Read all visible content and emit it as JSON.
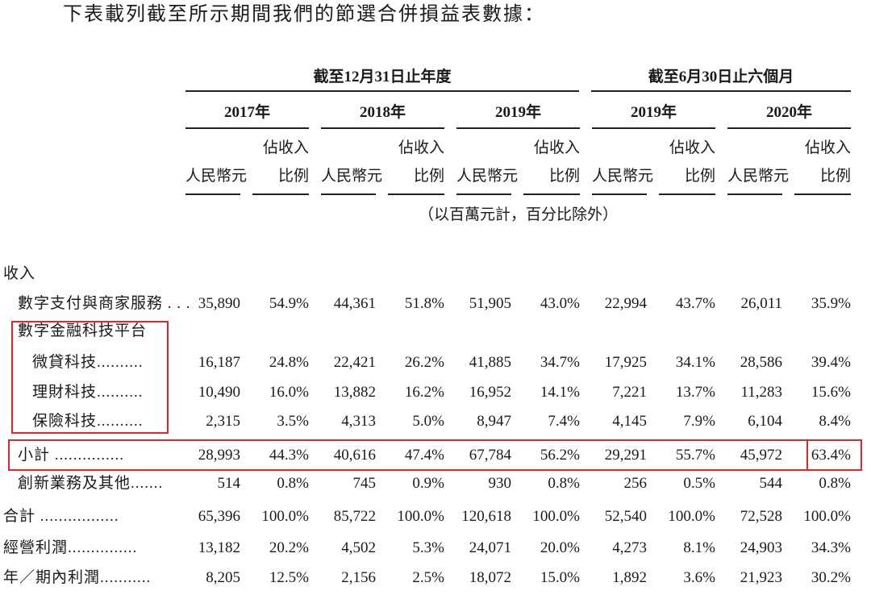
{
  "intro": "下表載列截至所示期間我們的節選合併損益表數據：",
  "header": {
    "group_1": "截至12月31日止年度",
    "group_2": "截至6月30日止六個月",
    "years": [
      "2017年",
      "2018年",
      "2019年",
      "2019年",
      "2020年"
    ],
    "col_amount": "人民幣元",
    "col_ratio_1": "佔收入",
    "col_ratio_2": "比例",
    "unit_note": "（以百萬元計，百分比除外）"
  },
  "rows": [
    {
      "label": "收入"
    },
    {
      "label": "數字支付與商家服務 . . .",
      "cells": [
        "35,890",
        "54.9%",
        "44,361",
        "51.8%",
        "51,905",
        "43.0%",
        "22,994",
        "43.7%",
        "26,011",
        "35.9%"
      ]
    },
    {
      "label": "數字金融科技平台"
    },
    {
      "label": "微貸科技..........",
      "cells": [
        "16,187",
        "24.8%",
        "22,421",
        "26.2%",
        "41,885",
        "34.7%",
        "17,925",
        "34.1%",
        "28,586",
        "39.4%"
      ]
    },
    {
      "label": "理財科技..........",
      "cells": [
        "10,490",
        "16.0%",
        "13,882",
        "16.2%",
        "16,952",
        "14.1%",
        "7,221",
        "13.7%",
        "11,283",
        "15.6%"
      ]
    },
    {
      "label": "保險科技..........",
      "cells": [
        "2,315",
        "3.5%",
        "4,313",
        "5.0%",
        "8,947",
        "7.4%",
        "4,145",
        "7.9%",
        "6,104",
        "8.4%"
      ]
    },
    {
      "label": "小計 ...............",
      "cells": [
        "28,993",
        "44.3%",
        "40,616",
        "47.4%",
        "67,784",
        "56.2%",
        "29,291",
        "55.7%",
        "45,972",
        "63.4%"
      ]
    },
    {
      "label": "創新業務及其他.......",
      "cells": [
        "514",
        "0.8%",
        "745",
        "0.9%",
        "930",
        "0.8%",
        "256",
        "0.5%",
        "544",
        "0.8%"
      ]
    },
    {
      "label": "合計 .................",
      "cells": [
        "65,396",
        "100.0%",
        "85,722",
        "100.0%",
        "120,618",
        "100.0%",
        "52,540",
        "100.0%",
        "72,528",
        "100.0%"
      ]
    },
    {
      "label": "經營利潤...............",
      "cells": [
        "13,182",
        "20.2%",
        "4,502",
        "5.3%",
        "24,071",
        "20.0%",
        "4,273",
        "8.1%",
        "24,903",
        "34.3%"
      ]
    },
    {
      "label": "年／期內利潤...........",
      "cells": [
        "8,205",
        "12.5%",
        "2,156",
        "2.5%",
        "18,072",
        "15.0%",
        "1,892",
        "3.6%",
        "21,923",
        "30.2%"
      ]
    }
  ]
}
